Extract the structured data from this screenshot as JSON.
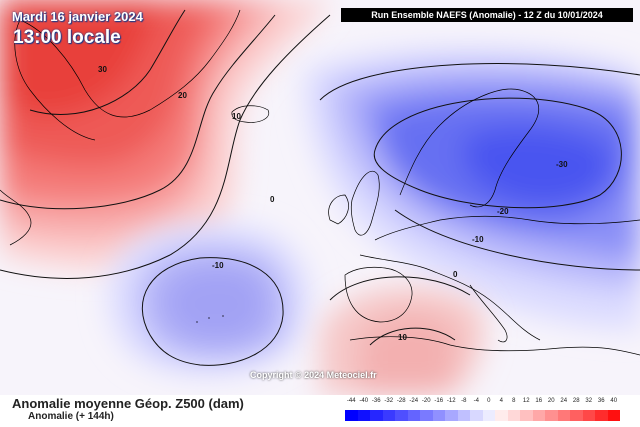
{
  "header": {
    "date": "Mardi 16 janvier 2024",
    "time": "13:00 locale"
  },
  "run_banner": "Run Ensemble NAEFS  (Anomalie)  -  12 Z du 10/01/2024",
  "contour_labels": {
    "greenland_30": "30",
    "greenland_20": "20",
    "iceland_10": "10",
    "atlantic_0": "0",
    "azores_minus10": "-10",
    "scandinavia_minus30": "-30",
    "baltic_minus20": "-20",
    "central_europe_minus10": "-10",
    "alps_0": "0",
    "north_africa_10": "10"
  },
  "copyright": "Copyright © 2024 Meteociel.fr",
  "footer": {
    "title": "Anomalie moyenne Géop. Z500 (dam)",
    "subtitle": "Anomalie (+ 144h)"
  },
  "legend": {
    "ticks": [
      "-44",
      "-40",
      "-36",
      "-32",
      "-28",
      "-24",
      "-20",
      "-16",
      "-12",
      "-8",
      "-4",
      "0",
      "4",
      "8",
      "12",
      "16",
      "20",
      "24",
      "28",
      "32",
      "36",
      "40"
    ],
    "colors": [
      "#0000ff",
      "#1010ff",
      "#2626ff",
      "#3a3aff",
      "#4f4fff",
      "#6464ff",
      "#7a7aff",
      "#9090ff",
      "#a8a8ff",
      "#c0c0ff",
      "#d8d8ff",
      "#ececff",
      "#ffecec",
      "#ffd8d8",
      "#ffc0c0",
      "#ffa8a8",
      "#ff9090",
      "#ff7878",
      "#ff6060",
      "#ff4848",
      "#ff2c2c",
      "#ff1010"
    ]
  },
  "colors": {
    "warm_strong": "#e8403a",
    "cold_strong": "#4a55f0",
    "land_outline": "#000000"
  }
}
